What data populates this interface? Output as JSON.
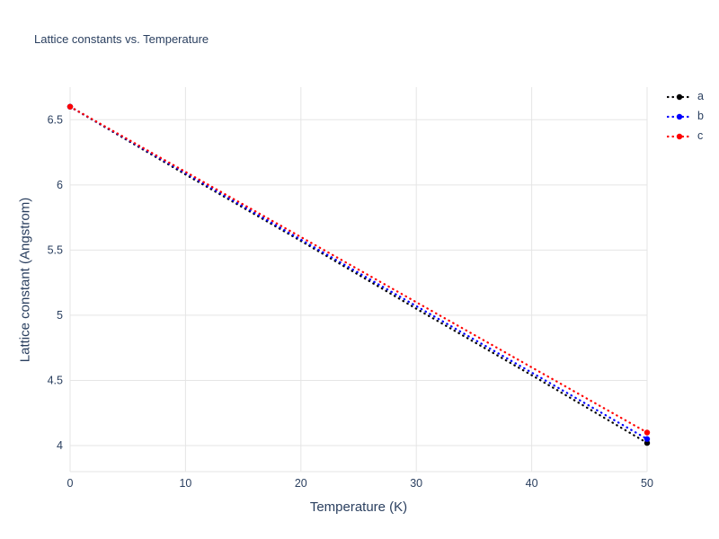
{
  "chart_data": {
    "type": "line",
    "title": "Lattice constants vs. Temperature",
    "xlabel": "Temperature (K)",
    "ylabel": "Lattice constant (Angstrom)",
    "x": [
      0,
      10,
      20,
      30,
      40,
      50
    ],
    "series": [
      {
        "name": "a",
        "color": "#000000",
        "values": [
          6.6,
          6.08,
          5.57,
          5.05,
          4.54,
          4.02
        ]
      },
      {
        "name": "b",
        "color": "#0000ff",
        "values": [
          6.6,
          6.09,
          5.58,
          5.07,
          4.56,
          4.05
        ]
      },
      {
        "name": "c",
        "color": "#ff0000",
        "values": [
          6.6,
          6.1,
          5.6,
          5.1,
          4.6,
          4.1
        ]
      }
    ],
    "xticks": [
      0,
      10,
      20,
      30,
      40,
      50
    ],
    "xtick_labels": [
      "0",
      "10",
      "20",
      "30",
      "40",
      "50"
    ],
    "yticks": [
      4,
      4.5,
      5,
      5.5,
      6,
      6.5
    ],
    "ytick_labels": [
      "4",
      "4.5",
      "5",
      "5.5",
      "6",
      "6.5"
    ],
    "xlim": [
      0,
      50
    ],
    "ylim": [
      3.8,
      6.75
    ],
    "grid": true,
    "line_style": "dotted",
    "legend_position": "top-right",
    "colors": {
      "title_text": "#2a3f5f",
      "tick_text": "#2a3f5f",
      "grid": "#e5e5e5",
      "axis_line": "#e5e5e5",
      "background": "#ffffff"
    }
  }
}
